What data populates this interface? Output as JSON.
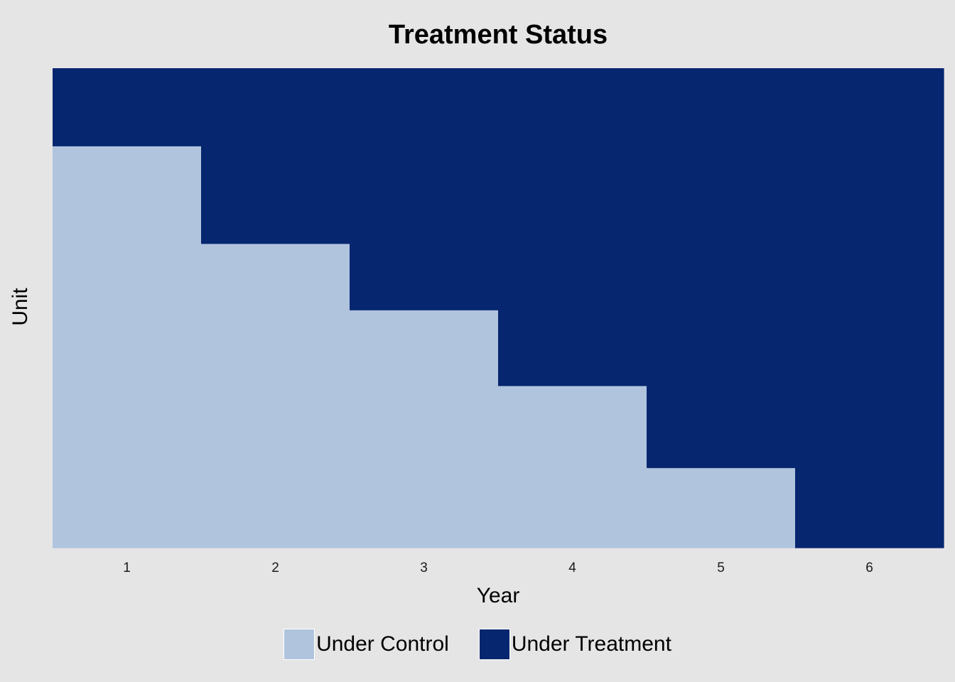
{
  "chart_data": {
    "type": "heatmap",
    "title": "Treatment Status",
    "xlabel": "Year",
    "ylabel": "Unit",
    "x": [
      1,
      2,
      3,
      4,
      5,
      6
    ],
    "units": [
      {
        "unit": 1,
        "treatment_start_year": 1,
        "row_weight": 1.0
      },
      {
        "unit": 2,
        "treatment_start_year": 2,
        "row_weight": 1.25
      },
      {
        "unit": 3,
        "treatment_start_year": 3,
        "row_weight": 0.85
      },
      {
        "unit": 4,
        "treatment_start_year": 4,
        "row_weight": 0.97
      },
      {
        "unit": 5,
        "treatment_start_year": 5,
        "row_weight": 1.05
      },
      {
        "unit": 6,
        "treatment_start_year": 6,
        "row_weight": 1.02
      }
    ],
    "y_tick_labels": false,
    "grid": false,
    "legend_position": "bottom",
    "legend": [
      {
        "label": "Under Control",
        "color": "#b0c4de"
      },
      {
        "label": "Under Treatment",
        "color": "#06266f"
      }
    ]
  }
}
